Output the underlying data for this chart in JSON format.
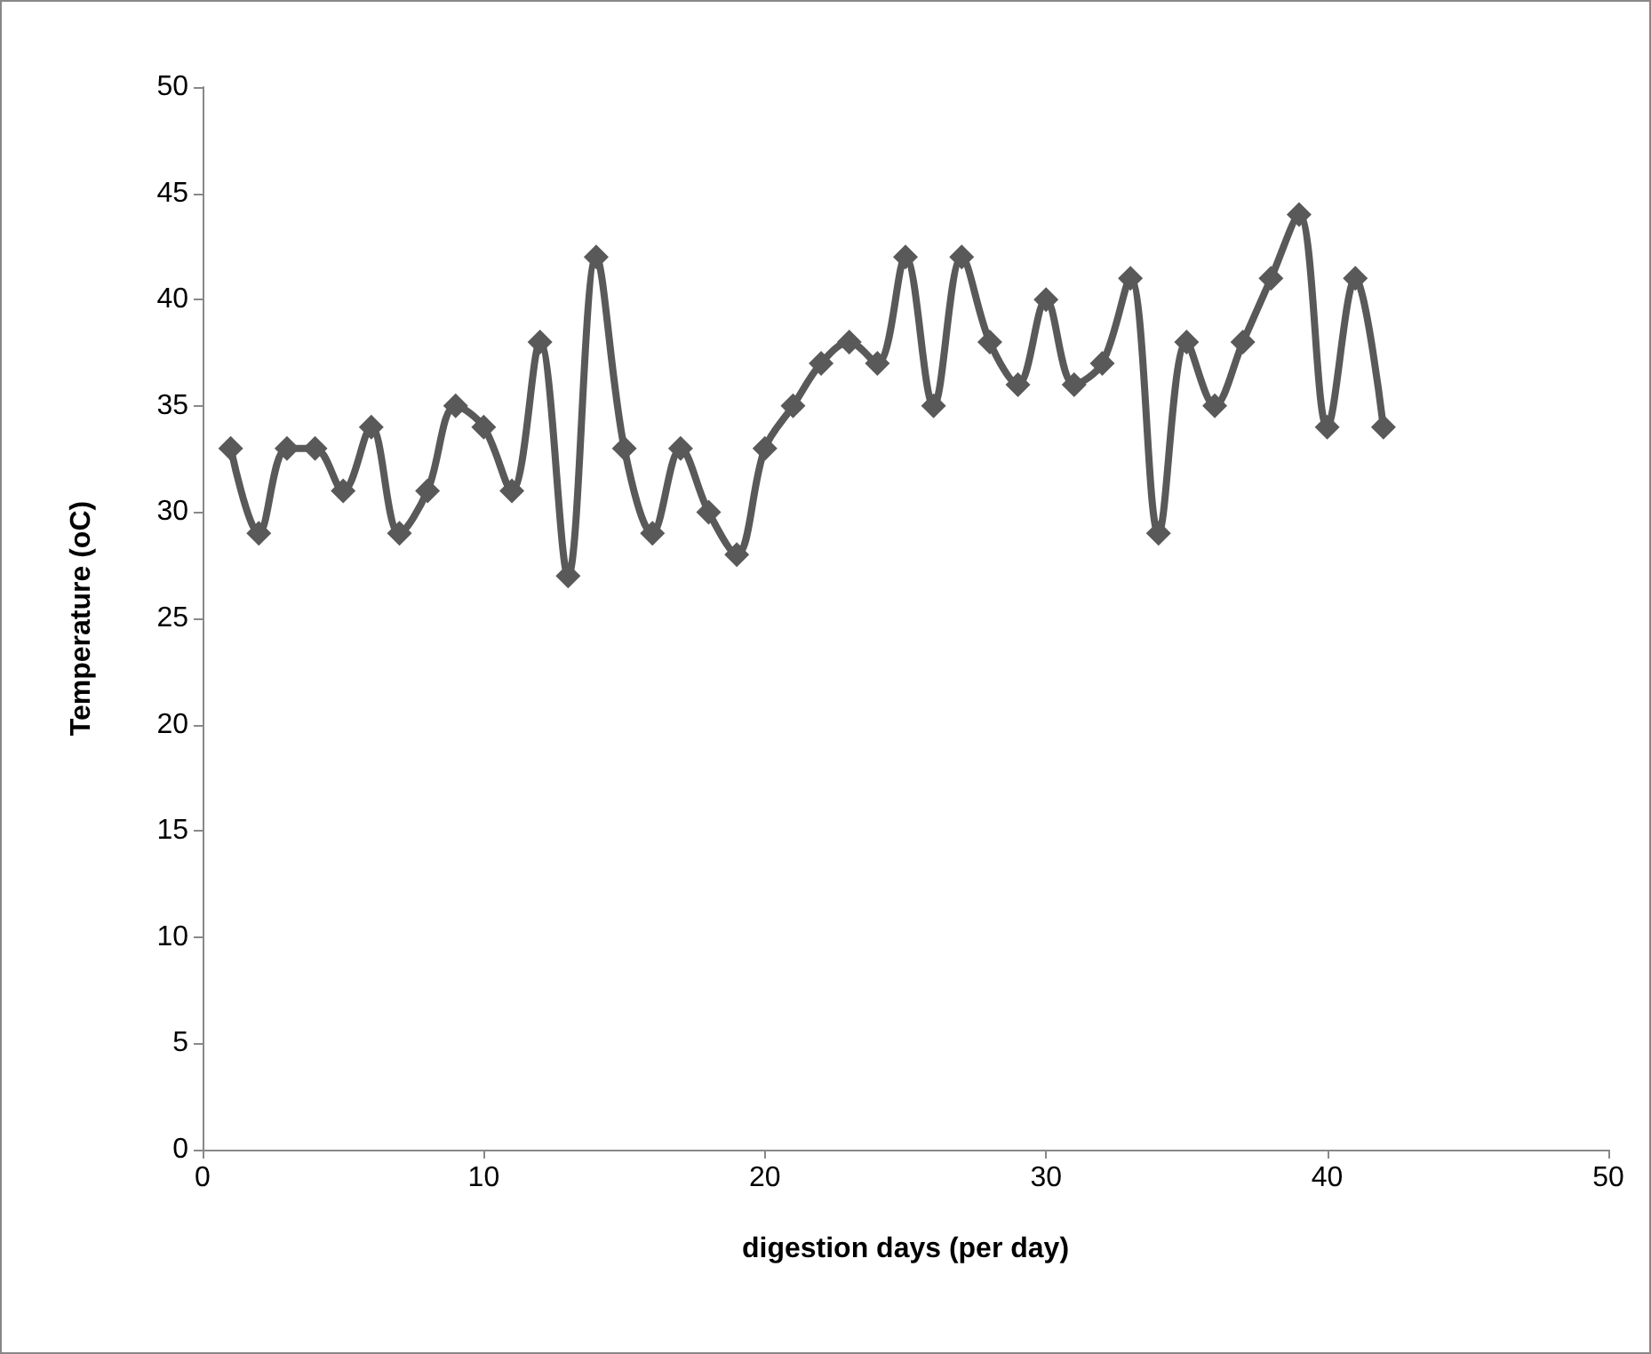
{
  "chart_data": {
    "type": "line",
    "xlabel": "digestion days (per day)",
    "ylabel": "Temperature (oC)",
    "x": [
      1,
      2,
      3,
      4,
      5,
      6,
      7,
      8,
      9,
      10,
      11,
      12,
      13,
      14,
      15,
      16,
      17,
      18,
      19,
      20,
      21,
      22,
      23,
      24,
      25,
      26,
      27,
      28,
      29,
      30,
      31,
      32,
      33,
      34,
      35,
      36,
      37,
      38,
      39,
      40,
      41,
      42
    ],
    "series": [
      {
        "color": "#595959",
        "values": [
          33,
          29,
          33,
          33,
          31,
          34,
          29,
          31,
          35,
          34,
          31,
          38,
          27,
          42,
          33,
          29,
          33,
          30,
          28,
          33,
          35,
          37,
          38,
          37,
          42,
          35,
          42,
          38,
          36,
          40,
          36,
          37,
          41,
          29,
          38,
          35,
          38,
          41,
          44,
          34,
          41,
          34
        ]
      }
    ],
    "xlim": [
      0,
      50
    ],
    "xticks": [
      0,
      10,
      20,
      30,
      40,
      50
    ],
    "ylim": [
      0,
      50
    ],
    "yticks": [
      0,
      5,
      10,
      15,
      20,
      25,
      30,
      35,
      40,
      45,
      50
    ],
    "marker": "diamond",
    "line_style": "solid"
  }
}
